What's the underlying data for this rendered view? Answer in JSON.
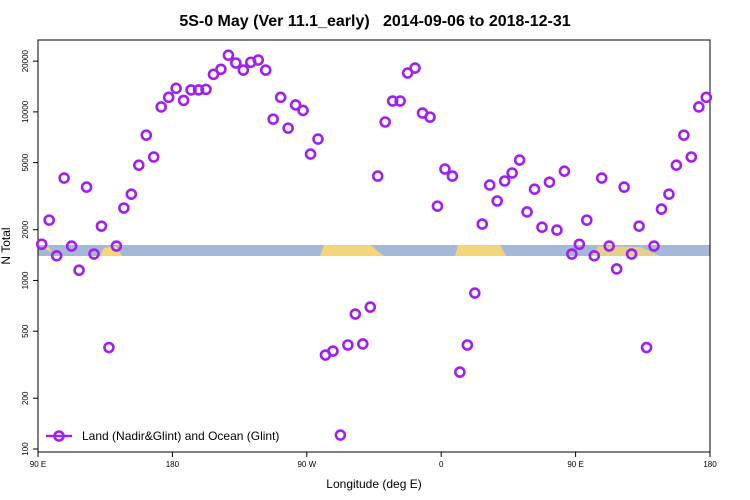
{
  "chart_data": {
    "type": "scatter",
    "title": "5S-0 May (Ver 11.1_early)   2014-09-06 to 2018-12-31",
    "x_label": "Longitude (deg E)",
    "y_label": "N Total",
    "log_y": true,
    "legend_position": "lower left",
    "xlim": [
      90,
      540
    ],
    "ylim": [
      96,
      26700
    ],
    "xticks": [
      {
        "value": 90,
        "label": "90 E"
      },
      180,
      {
        "value": 270,
        "label": "90 W"
      },
      {
        "value": 360,
        "label": "0"
      },
      {
        "value": 450,
        "label": "90 E"
      },
      {
        "value": 540,
        "label": "180"
      }
    ],
    "yticks": [
      100,
      200,
      500,
      1000,
      2000,
      5000,
      10000,
      20000
    ],
    "x": [
      92.5,
      97.5,
      102.5,
      107.5,
      112.5,
      117.5,
      122.5,
      127.5,
      132.5,
      137.5,
      142.5,
      147.5,
      152.5,
      157.5,
      162.5,
      167.5,
      172.5,
      177.5,
      182.5,
      187.5,
      192.5,
      197.5,
      202.5,
      207.5,
      212.5,
      217.5,
      222.5,
      227.5,
      232.5,
      237.5,
      242.5,
      247.5,
      252.5,
      257.5,
      262.5,
      267.5,
      272.5,
      277.5,
      282.5,
      287.5,
      292.5,
      297.5,
      302.5,
      307.5,
      312.5,
      317.5,
      322.5,
      327.5,
      332.5,
      337.5,
      342.5,
      347.5,
      352.5,
      357.5,
      362.5,
      367.5,
      372.5,
      377.5,
      382.5,
      387.5,
      392.5,
      397.5,
      402.5,
      407.5,
      412.5,
      417.5,
      422.5,
      427.5,
      432.5,
      437.5,
      442.5,
      447.5,
      452.5,
      457.5,
      462.5,
      467.5,
      472.5,
      477.5,
      482.5,
      487.5,
      492.5,
      497.5,
      502.5,
      507.5,
      512.5,
      517.5,
      522.5,
      527.5,
      532.5,
      537.5
    ],
    "series": [
      {
        "name": "Land (Nadir&Glint) and Ocean (Glint)",
        "color": "#a020f0",
        "values": [
          1640,
          2280,
          1400,
          4050,
          1600,
          1150,
          3580,
          1435,
          2100,
          400,
          1600,
          2690,
          3250,
          4830,
          7280,
          5400,
          10700,
          12200,
          13800,
          11700,
          13500,
          13500,
          13600,
          16700,
          17900,
          21700,
          19500,
          17700,
          19700,
          20300,
          17700,
          9060,
          12200,
          8010,
          11000,
          10200,
          5620,
          6900,
          361,
          381,
          121,
          414,
          632,
          420,
          695,
          4160,
          8710,
          11600,
          11600,
          17000,
          18200,
          9840,
          9310,
          2760,
          4580,
          4160,
          286,
          414,
          842,
          2160,
          3680,
          2960,
          3890,
          4340,
          5180,
          2550,
          3480,
          2070,
          3830,
          1990,
          4450,
          1435,
          1640,
          2280,
          1400,
          4050,
          1600,
          1170,
          3580,
          1435,
          2100,
          400,
          1600,
          2650,
          3250,
          4830,
          7280,
          5400,
          10700,
          12200
        ]
      }
    ]
  }
}
